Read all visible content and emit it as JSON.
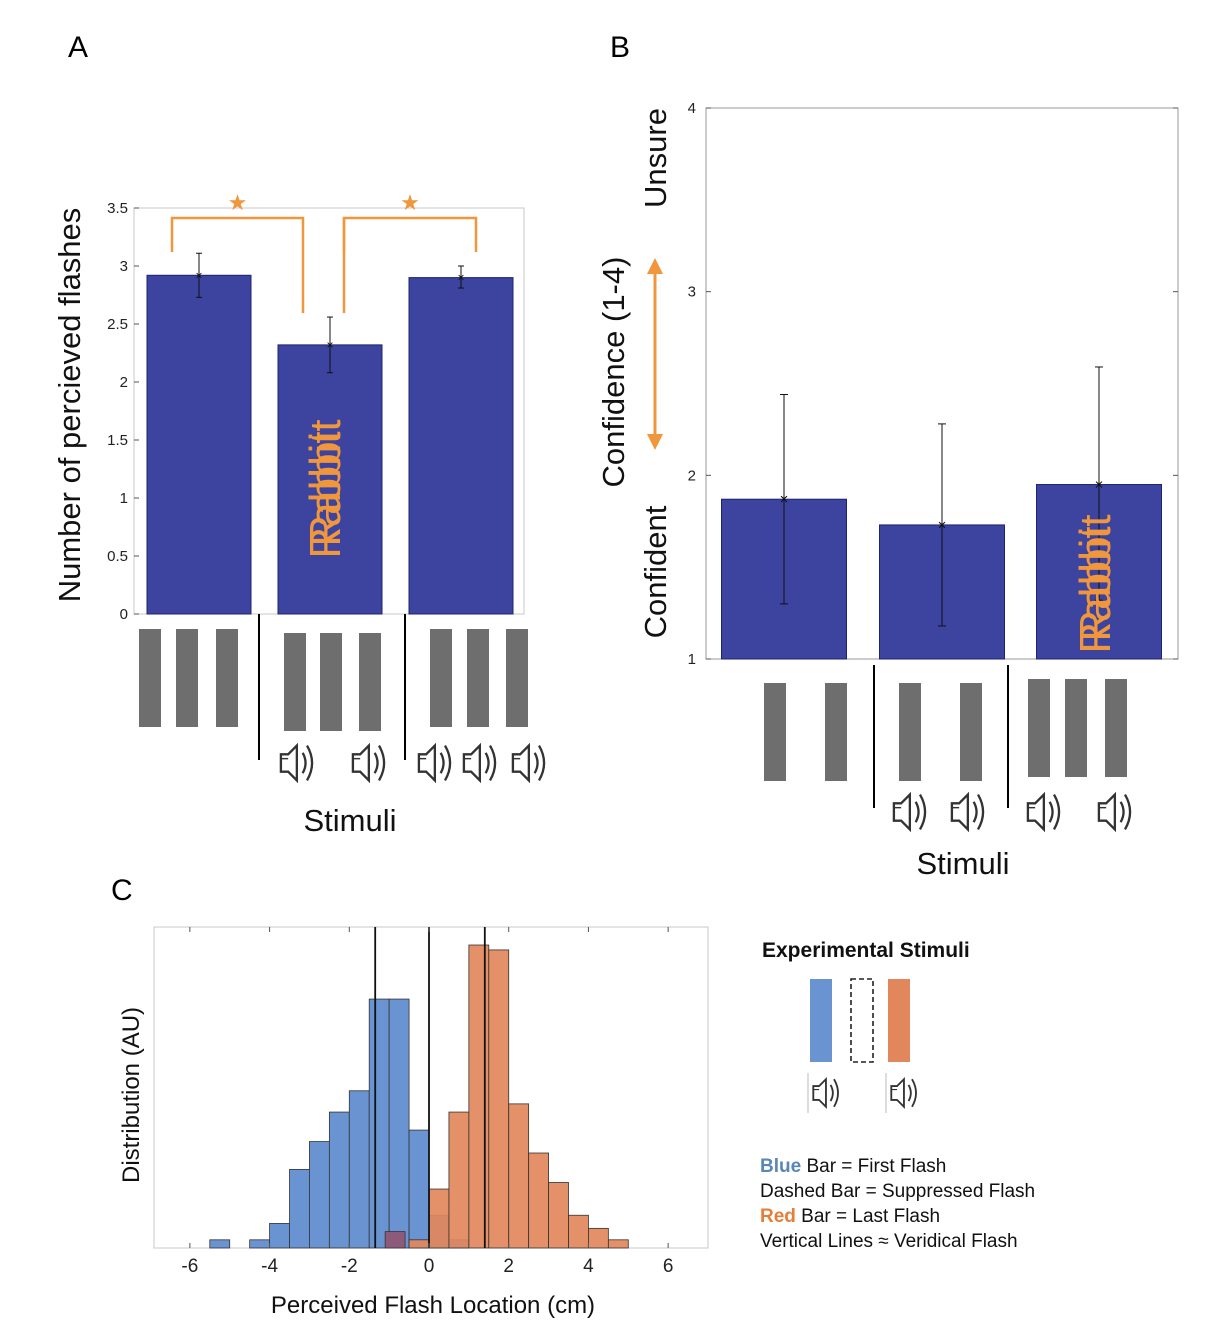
{
  "panels": {
    "a": "A",
    "b": "B",
    "c": "C"
  },
  "colors": {
    "bar": "#3c44a0",
    "bar_stroke": "#1e2470",
    "accent": "#f0963c",
    "stimulus": "#6e6e6e",
    "blue_hist": "#6a93d2",
    "red_hist": "#e2875b",
    "legend_blue_text": "#5b86b7",
    "legend_red_text": "#e47f37"
  },
  "chart_data": [
    {
      "id": "A",
      "type": "bar",
      "title": "",
      "xlabel": "Stimuli",
      "ylabel": "Number of percieved flashes",
      "ylim": [
        0,
        3.5
      ],
      "yticks": [
        0,
        0.5,
        1,
        1.5,
        2,
        2.5,
        3,
        3.5
      ],
      "ytick_labels": [
        "0",
        "0.5",
        "1",
        "1.5",
        "2",
        "2.5",
        "3",
        "3.5"
      ],
      "categories": [
        "3 flashes",
        "3 flashes + 2 beeps",
        "3 flashes + 3 beeps"
      ],
      "values": [
        2.92,
        2.32,
        2.9
      ],
      "errors": [
        [
          2.73,
          3.11
        ],
        [
          2.08,
          2.56
        ],
        [
          2.81,
          3.0
        ]
      ],
      "bar_annotations": [
        "",
        "Rabbit",
        ""
      ],
      "annotation_overlay": "Rabbit",
      "significance": [
        "*",
        "*"
      ],
      "stimulus_rows": {
        "flashes": [
          3,
          3,
          3
        ],
        "beeps": [
          0,
          2,
          3
        ]
      }
    },
    {
      "id": "B",
      "type": "bar",
      "title": "",
      "xlabel": "Stimuli",
      "ylabel": "Confidence (1-4)",
      "ylabel_top": "Unsure",
      "ylabel_bottom": "Confident",
      "ylim": [
        1,
        4
      ],
      "yticks": [
        1,
        2,
        3,
        4
      ],
      "ytick_labels": [
        "1",
        "2",
        "3",
        "4"
      ],
      "categories": [
        "2 flashes",
        "2 flashes + 2 beeps",
        "3 flashes + 2 beeps"
      ],
      "values": [
        1.87,
        1.73,
        1.95
      ],
      "errors": [
        [
          1.3,
          2.44
        ],
        [
          1.18,
          2.28
        ],
        [
          1.32,
          2.59
        ]
      ],
      "bar_annotations": [
        "",
        "",
        "Rabbit"
      ],
      "annotation_overlay": "Rabbit",
      "stimulus_rows": {
        "flashes": [
          2,
          2,
          3
        ],
        "beeps": [
          0,
          2,
          2
        ]
      }
    },
    {
      "id": "C",
      "type": "histogram",
      "xlabel": "Perceived Flash Location (cm)",
      "ylabel": "Distribution (AU)",
      "xlim": [
        -6.9,
        7.0
      ],
      "ylim": [
        0,
        19.6
      ],
      "xticks": [
        -6,
        -4,
        -2,
        0,
        2,
        4,
        6
      ],
      "xtick_labels": [
        "-6",
        "-4",
        "-2",
        "0",
        "2",
        "4",
        "6"
      ],
      "bin_width": 0.5,
      "series": [
        {
          "name": "First Flash",
          "color": "#6a93d2",
          "bins": [
            [
              -5.5,
              0.5
            ],
            [
              -4.5,
              0.5
            ],
            [
              -4.0,
              1.5
            ],
            [
              -3.5,
              4.8
            ],
            [
              -3.0,
              6.5
            ],
            [
              -2.5,
              8.3
            ],
            [
              -2.0,
              9.6
            ],
            [
              -1.5,
              15.2
            ],
            [
              -1.0,
              15.2
            ],
            [
              -0.5,
              7.2
            ],
            [
              0.0,
              2.0
            ],
            [
              0.5,
              0.5
            ]
          ]
        },
        {
          "name": "Suppressed Flash",
          "color": "#8e5a7a",
          "bins": [
            [
              -1.1,
              1.0
            ]
          ]
        },
        {
          "name": "Last Flash",
          "color": "#e2875b",
          "bins": [
            [
              -0.5,
              0.5
            ],
            [
              0.0,
              3.6
            ],
            [
              0.5,
              8.3
            ],
            [
              1.0,
              18.5
            ],
            [
              1.5,
              18.2
            ],
            [
              2.0,
              8.8
            ],
            [
              2.5,
              5.8
            ],
            [
              3.0,
              4.0
            ],
            [
              3.5,
              2.0
            ],
            [
              4.0,
              1.2
            ],
            [
              4.5,
              0.5
            ]
          ]
        }
      ],
      "vertical_lines": [
        -1.35,
        0.0,
        1.4
      ]
    }
  ],
  "legend": {
    "title": "Experimental Stimuli",
    "lines": [
      {
        "key": "Blue",
        "rest": " Bar = First Flash",
        "key_color": "#5b86b7"
      },
      {
        "key": "",
        "rest": "Dashed Bar = Suppressed Flash",
        "key_color": "#111111"
      },
      {
        "key": "Red",
        "rest": " Bar = Last Flash",
        "key_color": "#e47f37"
      },
      {
        "key": "",
        "rest": "Vertical Lines ≈ Veridical Flash",
        "key_color": "#111111"
      }
    ]
  }
}
